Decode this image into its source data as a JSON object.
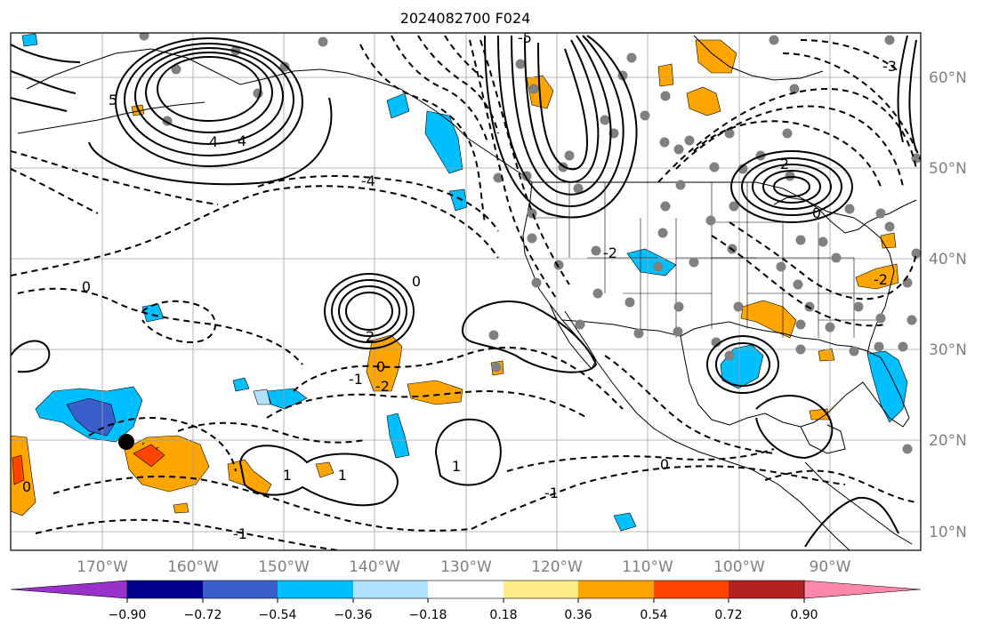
{
  "title": "2024082700 F024",
  "map": {
    "longitude_labels": [
      "170°W",
      "160°W",
      "150°W",
      "140°W",
      "130°W",
      "120°W",
      "110°W",
      "100°W",
      "90°W"
    ],
    "latitude_labels": [
      "60°N",
      "50°N",
      "40°N",
      "30°N",
      "20°N",
      "10°N"
    ],
    "contour_labels": [
      "-5",
      "-4",
      "-3",
      "-2",
      "-1",
      "0",
      "1",
      "2",
      "3",
      "4",
      "5"
    ]
  },
  "colorbar": {
    "tick_labels": [
      "−0.90",
      "−0.72",
      "−0.54",
      "−0.36",
      "−0.18",
      "0.18",
      "0.36",
      "0.54",
      "0.72",
      "0.90"
    ],
    "colors": [
      "#9932cc",
      "#00008b",
      "#3a5fcd",
      "#00bfff",
      "#b0e2ff",
      "#ffffff",
      "#ffec8b",
      "#ffa500",
      "#ff4500",
      "#b22222",
      "#ff88aa"
    ]
  }
}
